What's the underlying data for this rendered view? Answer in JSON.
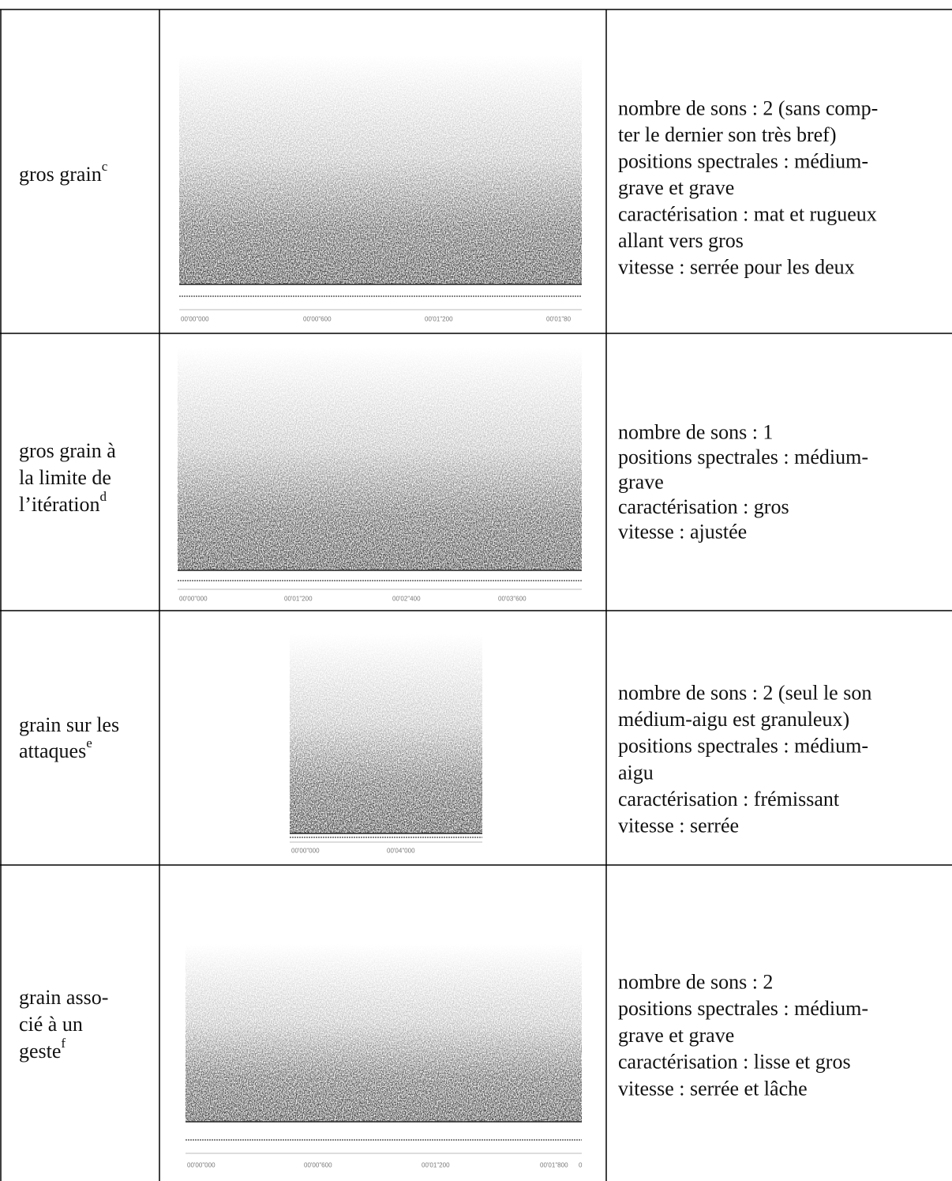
{
  "table": {
    "rows": [
      {
        "label": [
          "gros grain"
        ],
        "sup": "c",
        "time_labels": [
          "00'00\"000",
          "00'00\"600",
          "00'01\"200",
          "00'01\"80"
        ],
        "description": [
          "nombre de sons : 2 (sans comp-",
          "ter le dernier son très bref)",
          "positions spectrales : médium-",
          "grave et grave",
          "caractérisation : mat et rugueux",
          "allant vers gros",
          "vitesse : serrée pour les deux"
        ]
      },
      {
        "label": [
          "gros grain à",
          "la limite de",
          "l’itération"
        ],
        "sup": "d",
        "time_labels": [
          "00'00\"000",
          "00'01\"200",
          "00'02\"400",
          "00'03\"600"
        ],
        "description": [
          "nombre de sons : 1",
          "positions spectrales : médium-",
          "grave",
          "caractérisation : gros",
          "vitesse : ajustée"
        ]
      },
      {
        "label": [
          "grain sur les",
          "attaques"
        ],
        "sup": "e",
        "time_labels": [
          "00'00\"000",
          "00'04\"000"
        ],
        "description": [
          "nombre de sons : 2 (seul le son",
          "médium-aigu est granuleux)",
          "positions spectrales : médium-",
          "aigu",
          "caractérisation : frémissant",
          "vitesse : serrée"
        ]
      },
      {
        "label": [
          "grain asso-",
          "cié à un",
          "geste"
        ],
        "sup": "f",
        "time_labels": [
          "00'00\"000",
          "00'00\"600",
          "00'01\"200",
          "00'01\"800",
          "0"
        ],
        "description": [
          "nombre de sons : 2",
          "positions spectrales : médium-",
          "grave et grave",
          "caractérisation : lisse et gros",
          "vitesse : serrée et lâche"
        ]
      }
    ]
  }
}
